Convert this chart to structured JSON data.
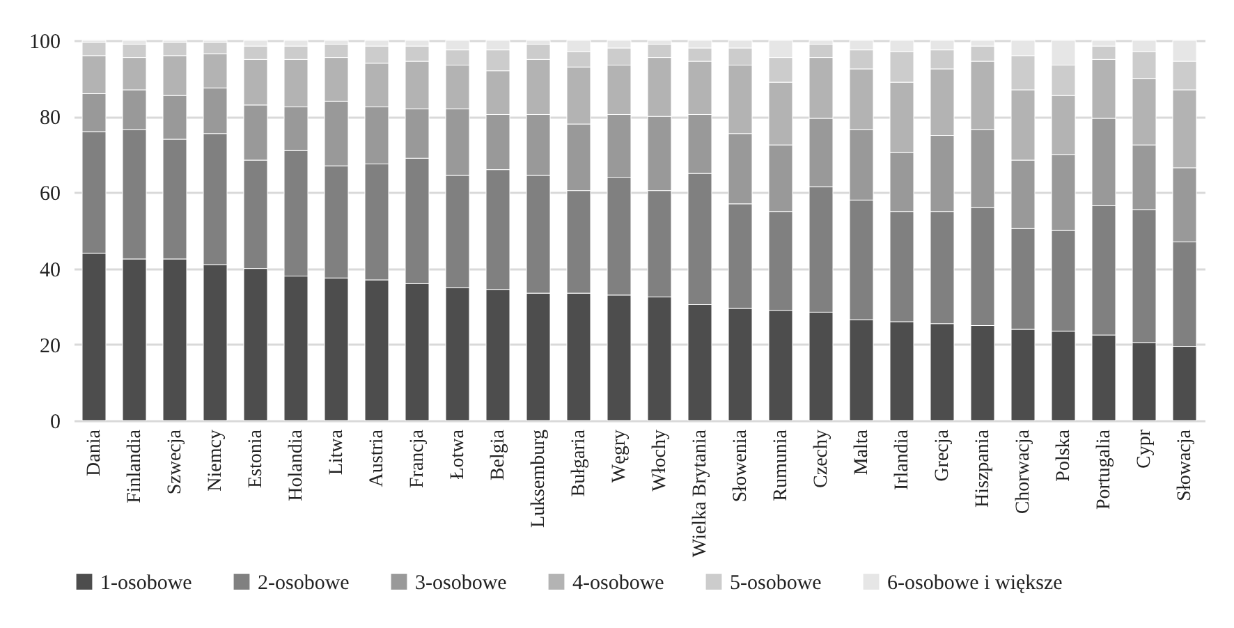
{
  "chart_data": {
    "type": "bar",
    "stacked": true,
    "grid": "y",
    "legend": "bottom",
    "categories": [
      "Dania",
      "Finlandia",
      "Szwecja",
      "Niemcy",
      "Estonia",
      "Holandia",
      "Litwa",
      "Austria",
      "Francja",
      "Łotwa",
      "Belgia",
      "Luksemburg",
      "Bułgaria",
      "Węgry",
      "Włochy",
      "Wielka Brytania",
      "Słowenia",
      "Rumunia",
      "Czechy",
      "Malta",
      "Irlandia",
      "Grecja",
      "Hiszpania",
      "Chorwacja",
      "Polska",
      "Portugalia",
      "Cypr",
      "Słowacja"
    ],
    "ylim": [
      0,
      100
    ],
    "yticks": [
      0,
      20,
      40,
      60,
      80,
      100
    ],
    "series": [
      {
        "name": "1-osobowe",
        "color": "#4d4d4d",
        "values": [
          44,
          42.5,
          42.5,
          41,
          40,
          38,
          37.5,
          37,
          36,
          35,
          34.5,
          33.5,
          33.5,
          33,
          32.5,
          30.5,
          29.5,
          29,
          28.5,
          26.5,
          26,
          25.5,
          25,
          24,
          23.5,
          22.5,
          20.5,
          19.5
        ]
      },
      {
        "name": "2-osobowe",
        "color": "#808080",
        "values": [
          32,
          34,
          31.5,
          34.5,
          28.5,
          33,
          29.5,
          30.5,
          33,
          29.5,
          31.5,
          31,
          27,
          31,
          28,
          34.5,
          27.5,
          26,
          33,
          31.5,
          29,
          29.5,
          31,
          26.5,
          26.5,
          34,
          35,
          27.5
        ]
      },
      {
        "name": "3-osobowe",
        "color": "#999999",
        "values": [
          10,
          10.5,
          11.5,
          12,
          14.5,
          11.5,
          17,
          15,
          13,
          17.5,
          14.5,
          16,
          17.5,
          16.5,
          19.5,
          15.5,
          18.5,
          17.5,
          18,
          18.5,
          15.5,
          20,
          20.5,
          18,
          20,
          23,
          17,
          19.5
        ]
      },
      {
        "name": "4-osobowe",
        "color": "#b3b3b3",
        "values": [
          10,
          8.5,
          10.5,
          9,
          12,
          12.5,
          11.5,
          11.5,
          12.5,
          11.5,
          11.5,
          14.5,
          15,
          13,
          15.5,
          14,
          18,
          16.5,
          16,
          16,
          18.5,
          17.5,
          18,
          18.5,
          15.5,
          15.5,
          17.5,
          20.5
        ]
      },
      {
        "name": "5-osobowe",
        "color": "#cccccc",
        "values": [
          3.5,
          3.5,
          3.5,
          3,
          3.5,
          3.5,
          3.5,
          4.5,
          4,
          4,
          5.5,
          4,
          4,
          4.5,
          3.5,
          3.5,
          4.5,
          6.5,
          3.5,
          5,
          8,
          5,
          4,
          9,
          8,
          3.5,
          7,
          7.5
        ]
      },
      {
        "name": "6-osobowe i większe",
        "color": "#e6e6e6",
        "values": [
          0.5,
          1,
          0.5,
          0.5,
          1.5,
          1.5,
          1,
          1.5,
          1.5,
          2.5,
          2.5,
          1,
          3,
          2,
          1,
          2,
          2,
          4.5,
          1,
          2.5,
          3,
          2.5,
          1.5,
          4,
          6.5,
          1.5,
          3,
          5.5
        ]
      }
    ]
  }
}
